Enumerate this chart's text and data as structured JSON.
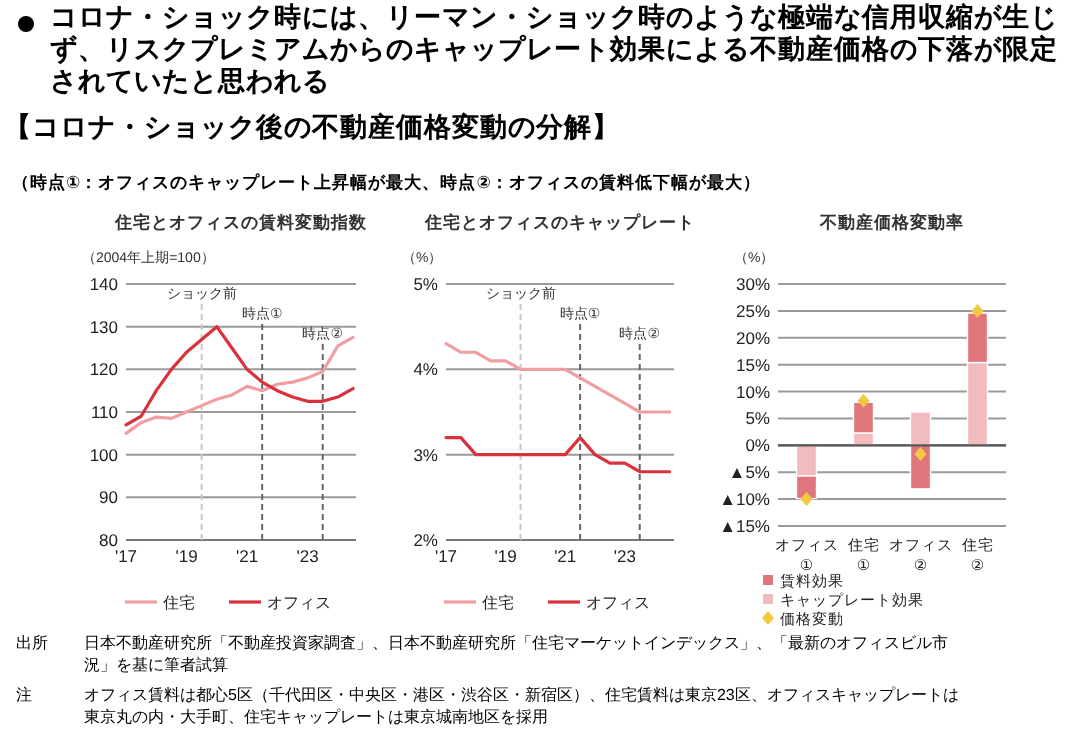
{
  "chart_data": [
    {
      "type": "other",
      "title": "コロナ・ショック時には、リーマン・ショック時のような極端な信用収縮が生じず、リスクプレミアムからのキャップレート効果による不動産価格の下落が限定されていたと思われる",
      "subtitle": "【コロナ・ショック後の不動産価格変動の分解】",
      "annotations": [
        "（時点①：オフィスのキャップレート上昇幅が最大、時点②：オフィスの賃料低下幅が最大）"
      ]
    },
    {
      "type": "line",
      "title": "住宅とオフィスの賃料変動指数",
      "ylabel": "（2004年上期=100）",
      "xlim": [
        2017,
        2024.6
      ],
      "xticks": [
        {
          "value": 2017,
          "label": "'17"
        },
        {
          "value": 2019,
          "label": "'19"
        },
        {
          "value": 2021,
          "label": "'21"
        },
        {
          "value": 2023,
          "label": "'23"
        }
      ],
      "ylim": [
        80,
        140
      ],
      "yticks": [
        80,
        90,
        100,
        110,
        120,
        130,
        140
      ],
      "grid": "y",
      "legend": "bottom",
      "x": [
        2017,
        2017.5,
        2018,
        2018.5,
        2019,
        2019.5,
        2020,
        2020.5,
        2021,
        2021.5,
        2022,
        2022.5,
        2023,
        2023.5,
        2024,
        2024.5
      ],
      "series": [
        {
          "name": "住宅",
          "color": "#f19ea2",
          "values": [
            105,
            107.5,
            108.8,
            108.5,
            110,
            111.5,
            113,
            114,
            116,
            115,
            116.5,
            117,
            118,
            119.5,
            125.5,
            127.5
          ]
        },
        {
          "name": "オフィス",
          "color": "#d9323c",
          "values": [
            107,
            109,
            115,
            120,
            124,
            127,
            130,
            125,
            120,
            117,
            115,
            113.5,
            112.5,
            112.5,
            113.5,
            115.5
          ]
        }
      ],
      "ref_lines": [
        {
          "axis": "x",
          "value": 2019.5,
          "label": "ショック前",
          "color": "#c8c8c8",
          "line_style": "dashed"
        },
        {
          "axis": "x",
          "value": 2021.5,
          "label": "時点①",
          "color": "#666666",
          "line_style": "dashed"
        },
        {
          "axis": "x",
          "value": 2023.5,
          "label": "時点②",
          "color": "#666666",
          "line_style": "dashed"
        }
      ]
    },
    {
      "type": "line",
      "title": "住宅とオフィスのキャップレート",
      "ylabel": "（%）",
      "xlim": [
        2017,
        2024.65
      ],
      "xticks": [
        {
          "value": 2017,
          "label": "'17"
        },
        {
          "value": 2019,
          "label": "'19"
        },
        {
          "value": 2021,
          "label": "'21"
        },
        {
          "value": 2023,
          "label": "'23"
        }
      ],
      "ylim": [
        2,
        5
      ],
      "yticks": [
        {
          "value": 2,
          "label": "2%"
        },
        {
          "value": 3,
          "label": "3%"
        },
        {
          "value": 4,
          "label": "4%"
        },
        {
          "value": 5,
          "label": "5%"
        }
      ],
      "grid": "y",
      "legend": "bottom",
      "x": [
        2017,
        2017.5,
        2018,
        2018.5,
        2019,
        2019.5,
        2020,
        2020.5,
        2021,
        2021.5,
        2022,
        2022.5,
        2023,
        2023.5,
        2024,
        2024.5
      ],
      "series": [
        {
          "name": "住宅",
          "color": "#f19ea2",
          "values": [
            4.3,
            4.2,
            4.2,
            4.1,
            4.1,
            4.0,
            4.0,
            4.0,
            4.0,
            3.9,
            3.8,
            3.7,
            3.6,
            3.5,
            3.5,
            3.5
          ]
        },
        {
          "name": "オフィス",
          "color": "#d9323c",
          "values": [
            3.2,
            3.2,
            3.0,
            3.0,
            3.0,
            3.0,
            3.0,
            3.0,
            3.0,
            3.2,
            3.0,
            2.9,
            2.9,
            2.8,
            2.8,
            2.8
          ]
        }
      ],
      "ref_lines": [
        {
          "axis": "x",
          "value": 2019.5,
          "label": "ショック前",
          "color": "#c8c8c8",
          "line_style": "dashed"
        },
        {
          "axis": "x",
          "value": 2021.5,
          "label": "時点①",
          "color": "#666666",
          "line_style": "dashed"
        },
        {
          "axis": "x",
          "value": 2023.5,
          "label": "時点②",
          "color": "#666666",
          "line_style": "dashed"
        }
      ]
    },
    {
      "type": "bar",
      "title": "不動産価格変動率",
      "ylabel": "（%）",
      "stacked": true,
      "categories": [
        "オフィス ①",
        "住宅 ①",
        "オフィス ②",
        "住宅 ②"
      ],
      "ylim": [
        -15,
        30
      ],
      "yticks": [
        {
          "value": -15,
          "label": "▲15%"
        },
        {
          "value": -10,
          "label": "▲10%"
        },
        {
          "value": -5,
          "label": "▲5%"
        },
        {
          "value": 0,
          "label": "0%"
        },
        {
          "value": 5,
          "label": "5%"
        },
        {
          "value": 10,
          "label": "10%"
        },
        {
          "value": 15,
          "label": "15%"
        },
        {
          "value": 20,
          "label": "20%"
        },
        {
          "value": 25,
          "label": "25%"
        },
        {
          "value": 30,
          "label": "30%"
        }
      ],
      "grid": "y",
      "legend": "bottom",
      "series": [
        {
          "name": "キャップレート効果",
          "color": "#f2bcbf",
          "values": [
            -5.7,
            2.3,
            6.2,
            15.4
          ]
        },
        {
          "name": "賃料効果",
          "color": "#e0757c",
          "values": [
            -4.2,
            5.7,
            -8.1,
            9.2
          ]
        },
        {
          "name": "価格変動",
          "type": "scatter",
          "marker": "diamond",
          "color": "#f5c842",
          "values": [
            -10,
            8.3,
            -1.6,
            25
          ]
        }
      ]
    },
    {
      "type": "other",
      "annotations": [
        "出所",
        "日本不動産研究所「不動産投資家調査」、日本不動産研究所「住宅マーケットインデックス」、「最新のオフィスビル市況」を基に筆者試算",
        "注",
        "オフィス賃料は都心5区（千代田区・中央区・港区・渋谷区・新宿区）、住宅賃料は東京23区、オフィスキャップレートは東京丸の内・大手町、住宅キャップレートは東京城南地区を採用"
      ]
    }
  ]
}
